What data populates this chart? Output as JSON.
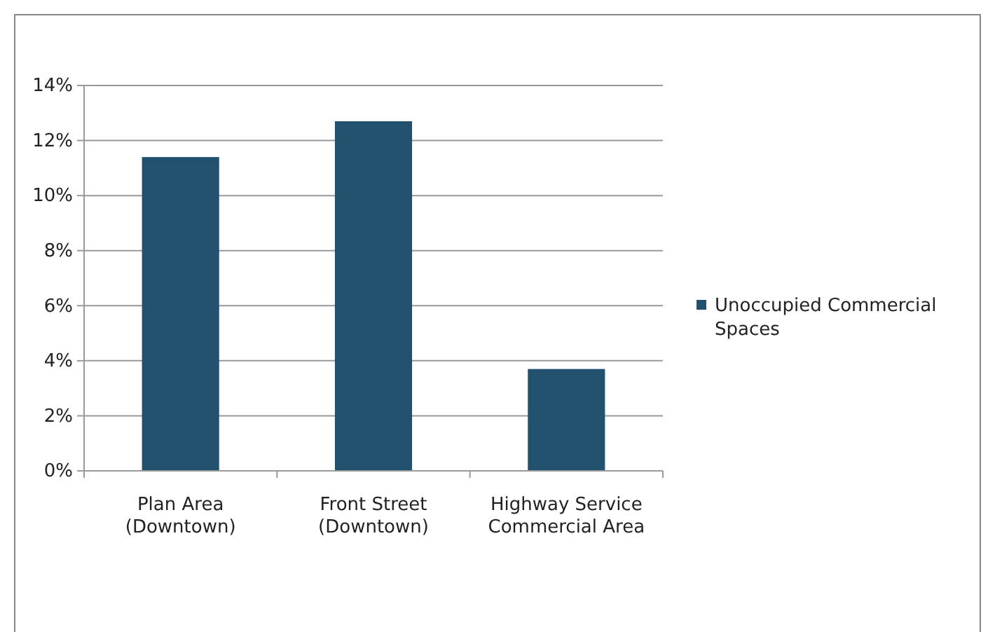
{
  "chart_data": {
    "type": "bar",
    "categories": [
      "Plan Area\n(Downtown)",
      "Front Street\n(Downtown)",
      "Highway Service\nCommercial Area"
    ],
    "series": [
      {
        "name": "Unoccupied Commercial Spaces",
        "color": "#22516e",
        "values": [
          11.4,
          12.7,
          3.7
        ]
      }
    ],
    "ylim": [
      0,
      14
    ],
    "yticks": [
      {
        "value": 0,
        "label": "0%"
      },
      {
        "value": 2,
        "label": "2%"
      },
      {
        "value": 4,
        "label": "4%"
      },
      {
        "value": 6,
        "label": "6%"
      },
      {
        "value": 8,
        "label": "8%"
      },
      {
        "value": 10,
        "label": "10%"
      },
      {
        "value": 12,
        "label": "12%"
      },
      {
        "value": 14,
        "label": "14%"
      }
    ],
    "grid": "y",
    "legend": "right"
  }
}
